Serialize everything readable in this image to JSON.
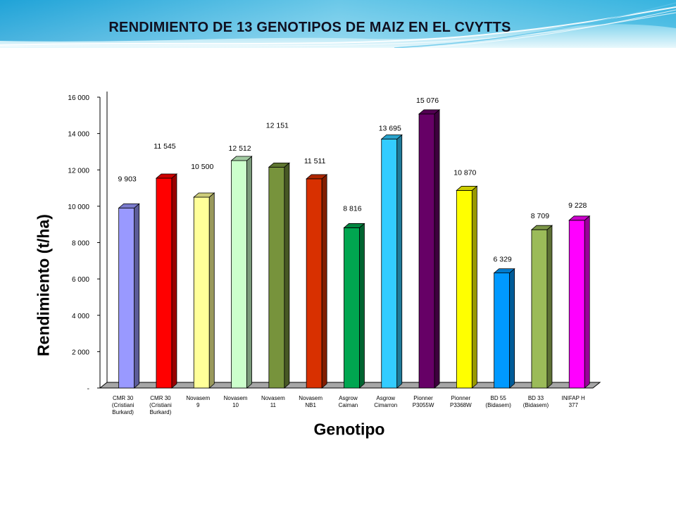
{
  "header": {
    "title": "RENDIMIENTO  DE 13 GENOTIPOS DE MAIZ EN EL CVYTTS"
  },
  "chart_data": {
    "type": "bar",
    "title": "RENDIMIENTO  DE 13 GENOTIPOS DE MAIZ EN EL CVYTTS",
    "xlabel": "Genotipo",
    "ylabel": "Rendimiento (t/ha)",
    "ylim": [
      0,
      16000
    ],
    "y_ticks": [
      {
        "value": 0,
        "label": "-"
      },
      {
        "value": 2000,
        "label": "2 000"
      },
      {
        "value": 4000,
        "label": "4 000"
      },
      {
        "value": 6000,
        "label": "6 000"
      },
      {
        "value": 8000,
        "label": "8 000"
      },
      {
        "value": 10000,
        "label": "10 000"
      },
      {
        "value": 12000,
        "label": "12 000"
      },
      {
        "value": 14000,
        "label": "14 000"
      },
      {
        "value": 16000,
        "label": "16 000"
      }
    ],
    "grid": false,
    "bars_3d": true,
    "categories": [
      [
        "CMR 30",
        "(Cristiani",
        "Burkard)"
      ],
      [
        "CMR 30",
        "(Cristiani",
        "Burkard)"
      ],
      [
        "Novasem",
        "9"
      ],
      [
        "Novasem",
        "10"
      ],
      [
        "Novasem",
        "11"
      ],
      [
        "Novasem",
        "NB1"
      ],
      [
        "Asgrow",
        "Caiman"
      ],
      [
        "Asgrow",
        "Cimarron"
      ],
      [
        "Pionner",
        "P3055W"
      ],
      [
        "Pionner",
        "P3368W"
      ],
      [
        "BD 55",
        "(Bidasem)"
      ],
      [
        "BD 33",
        "(Bidasem)"
      ],
      [
        "INIFAP   H",
        "377"
      ]
    ],
    "values": [
      9903,
      11545,
      10500,
      12512,
      12151,
      11511,
      8816,
      13695,
      15076,
      10870,
      6329,
      8709,
      9228
    ],
    "value_labels": [
      "9 903",
      "11 545",
      "10 500",
      "12 512",
      "12 151",
      "11 511",
      "8 816",
      "13 695",
      "15 076",
      "10 870",
      "6 329",
      "8 709",
      "9 228"
    ],
    "colors": [
      "#9999ff",
      "#ff0000",
      "#ffff99",
      "#ccffcc",
      "#77933c",
      "#d83000",
      "#00a650",
      "#33ccff",
      "#660066",
      "#ffff00",
      "#0099ff",
      "#9bbb59",
      "#ff00ff"
    ]
  },
  "axis_labels": {
    "y": "Rendimiento (t/ha)",
    "x": "Genotipo"
  }
}
